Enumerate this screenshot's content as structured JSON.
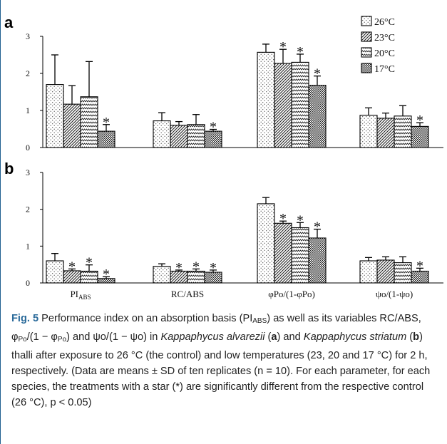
{
  "chart_data": [
    {
      "panel": "a",
      "type": "bar",
      "categories": [
        "PI_ABS",
        "RC/ABS",
        "φPo/(1-φPo)",
        "ψo/(1-ψo)"
      ],
      "ylim": [
        0,
        3
      ],
      "yticks": [
        0,
        1,
        2,
        3
      ],
      "series": [
        {
          "name": "26°C",
          "values": [
            1.7,
            0.72,
            2.57,
            0.87
          ],
          "sd": [
            0.8,
            0.22,
            0.22,
            0.2
          ],
          "star": [
            false,
            false,
            false,
            false
          ]
        },
        {
          "name": "23°C",
          "values": [
            1.17,
            0.6,
            2.27,
            0.79
          ],
          "sd": [
            0.5,
            0.1,
            0.38,
            0.14
          ],
          "star": [
            false,
            false,
            true,
            false
          ]
        },
        {
          "name": "20°C",
          "values": [
            1.37,
            0.62,
            2.3,
            0.85
          ],
          "sd": [
            0.95,
            0.27,
            0.22,
            0.28
          ],
          "star": [
            false,
            false,
            true,
            false
          ]
        },
        {
          "name": "17°C",
          "values": [
            0.44,
            0.44,
            1.68,
            0.57
          ],
          "sd": [
            0.18,
            0.05,
            0.25,
            0.1
          ],
          "star": [
            true,
            true,
            true,
            true
          ]
        }
      ]
    },
    {
      "panel": "b",
      "type": "bar",
      "categories": [
        "PI_ABS",
        "RC/ABS",
        "φPo/(1-φPo)",
        "ψo/(1-ψo)"
      ],
      "ylim": [
        0,
        3
      ],
      "yticks": [
        0,
        1,
        2,
        3
      ],
      "series": [
        {
          "name": "26°C",
          "values": [
            0.6,
            0.45,
            2.15,
            0.6
          ],
          "sd": [
            0.2,
            0.07,
            0.17,
            0.09
          ],
          "star": [
            false,
            false,
            false,
            false
          ]
        },
        {
          "name": "23°C",
          "values": [
            0.33,
            0.32,
            1.62,
            0.62
          ],
          "sd": [
            0.05,
            0.03,
            0.06,
            0.09
          ],
          "star": [
            true,
            true,
            true,
            false
          ]
        },
        {
          "name": "20°C",
          "values": [
            0.32,
            0.32,
            1.5,
            0.55
          ],
          "sd": [
            0.17,
            0.06,
            0.14,
            0.16
          ],
          "star": [
            true,
            true,
            true,
            false
          ]
        },
        {
          "name": "17°C",
          "values": [
            0.12,
            0.29,
            1.22,
            0.32
          ],
          "sd": [
            0.05,
            0.06,
            0.24,
            0.08
          ],
          "star": [
            true,
            true,
            true,
            true
          ]
        }
      ]
    }
  ],
  "panel_labels": {
    "a": "a",
    "b": "b"
  },
  "legend": [
    "26°C",
    "23°C",
    "20°C",
    "17°C"
  ],
  "x_tick_labels": {
    "pi_main": "PI",
    "pi_sub": "ABS",
    "rc": "RC/ABS",
    "phi": "φPo/(1-φPo)",
    "psi": "ψo/(1-ψo)"
  },
  "star_symbol": "*",
  "caption": {
    "fig_label": "Fig. 5",
    "t1": "  Performance index on an absorption basis (PI",
    "s1": "ABS",
    "t2": ") as well as its variables RC/ABS, φ",
    "s2": "Po",
    "t3": "/(1 − φ",
    "s3": "Po",
    "t4": ") and ψo/(1 − ψo) in ",
    "species1": "Kappaphycus alvarezii",
    "t5": " (",
    "a": "a",
    "t6": ") and ",
    "species2": "Kappaphycus striatum",
    "t7": " (",
    "b": "b",
    "t8": ") thalli after exposure to 26 °C (the control) and low temperatures (23, 20 and 17 °C) for 2 h, respectively. (Data are means ± SD of ten replicates (n = 10). For each parameter, for each species, the treatments with a star (*) are significantly different from the respective control (26 °C), p < 0.05)"
  },
  "colors": {
    "frame": "#1f5f8f",
    "fig_label": "#2a6a9a",
    "bar_stroke": "#000000",
    "dark_fill": "#555555"
  }
}
